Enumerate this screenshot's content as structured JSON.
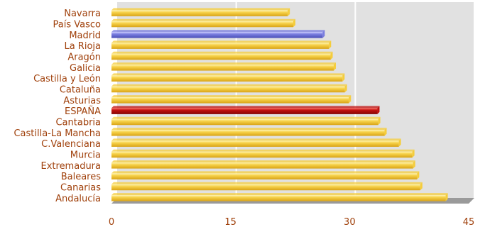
{
  "chart_data": {
    "type": "bar",
    "orientation": "horizontal",
    "categories": [
      "Navarra",
      "País Vasco",
      "Madrid",
      "La Rioja",
      "Aragón",
      "Galicia",
      "Castilla y León",
      "Cataluña",
      "Asturias",
      "ESPAÑA",
      "Cantabria",
      "Castilla-La Mancha",
      "C.Valenciana",
      "Murcia",
      "Extremadura",
      "Baleares",
      "Canarias",
      "Andalucía"
    ],
    "values": [
      22.2,
      22.9,
      26.6,
      27.4,
      27.6,
      28.0,
      29.1,
      29.4,
      29.9,
      33.5,
      33.6,
      34.4,
      36.2,
      37.9,
      38.0,
      38.5,
      38.9,
      42.1
    ],
    "bar_colors": [
      "#f5cd3c",
      "#f5cd3c",
      "#7b7fe0",
      "#f5cd3c",
      "#f5cd3c",
      "#f5cd3c",
      "#f5cd3c",
      "#f5cd3c",
      "#f5cd3c",
      "#c0100f",
      "#f5cd3c",
      "#f5cd3c",
      "#f5cd3c",
      "#f5cd3c",
      "#f5cd3c",
      "#f5cd3c",
      "#f5cd3c",
      "#f5cd3c"
    ],
    "xlim": [
      0,
      45
    ],
    "xticks": [
      "0",
      "15",
      "30",
      "45"
    ],
    "tick_values": [
      0,
      15,
      30,
      45
    ],
    "grid": true,
    "title": "",
    "xlabel": "",
    "ylabel": "",
    "colors": {
      "label_text": "#a0410c",
      "plot_background": "#e1e1e1",
      "gridline": "#ffffff",
      "floor": "#9a9a9a",
      "default_bar": "#f5cd3c",
      "madrid_bar": "#7b7fe0",
      "espana_bar": "#c0100f"
    }
  }
}
